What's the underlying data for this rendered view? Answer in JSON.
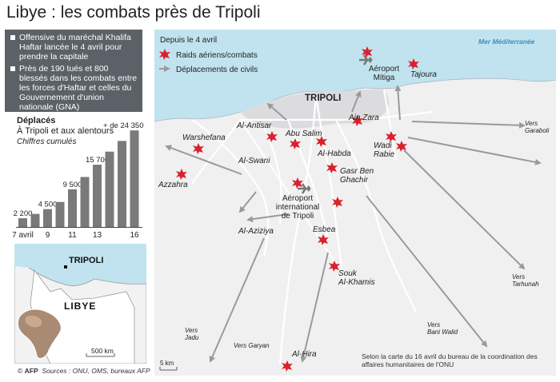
{
  "title": "Libye : les combats près de Tripoli",
  "info": [
    "Offensive du maréchal Khalifa Haftar lancée le 4 avril pour prendre la capitale",
    "Près de 190 tués et 800 blessés dans les combats entre les forces d'Haftar et celles du Gouvernement d'union nationale (GNA)"
  ],
  "chart_data": {
    "type": "bar",
    "title": "Déplacés",
    "subtitle": "À Tripoli et aux alentours",
    "subtitle2": "Chiffres cumulés",
    "categories": [
      "7 avril",
      "8",
      "9",
      "10",
      "11",
      "12",
      "13",
      "14",
      "15",
      "16"
    ],
    "tick_labels": [
      "7 avril",
      "",
      "9",
      "",
      "11",
      "",
      "13",
      "",
      "",
      "16"
    ],
    "values": [
      2200,
      3300,
      4500,
      6300,
      9500,
      12600,
      15700,
      19000,
      21700,
      24350
    ],
    "value_labels": [
      "2 200",
      "",
      "4 500",
      "",
      "9 500",
      "",
      "15 700",
      "",
      "",
      "+ de 24 350"
    ],
    "ylim": [
      0,
      26000
    ],
    "bar_color": "#7a7a7a"
  },
  "inset": {
    "city": "TRIPOLI",
    "country": "LIBYE",
    "scale": "500 km"
  },
  "legend": {
    "since": "Depuis le 4 avril",
    "raids": "Raids aériens/combats",
    "moves": "Déplacements de civils"
  },
  "sea_label": "Mer Méditerranée",
  "city_label": "TRIPOLI",
  "places": {
    "mitiga": "Aéroport\nMitiga",
    "tajoura": "Tajoura",
    "ain_zara": "Ain Zara",
    "al_antisar": "Al-Antisar",
    "abu_salim": "Abu Salim",
    "al_habda": "Al-Habda",
    "warshefana": "Warshefana",
    "al_swani": "Al-Swani",
    "azzahra": "Azzahra",
    "gasr": "Gasr Ben\nGhachir",
    "airport": "Aéroport\ninternational\nde Tripoli",
    "wadi": "Wadi\nRabie",
    "al_aziziya": "Al-Aziziya",
    "esbea": "Esbea",
    "souk": "Souk\nAl-Khamis",
    "al_hira": "Al-Hira"
  },
  "directions": {
    "garaboli": "Vers\nGaraboli",
    "tarhunah": "Vers\nTarhunah",
    "bani_walid": "Vers\nBani Walid",
    "jadu": "Vers\nJadu",
    "garyan": "Vers Garyan"
  },
  "map_scale": "5 km",
  "note": "Selon la carte du 16 avril du bureau de la coordination des affaires humanitaires de l'ONU",
  "footer": {
    "logo": "AFP",
    "sources": "Sources : ONU, OMS, bureaux AFP",
    "copyright": "©"
  },
  "colors": {
    "sea": "#c1e3ef",
    "land": "#f0f0f0",
    "urban": "#dedee0",
    "road": "#ffffff",
    "raid": "#d8222e",
    "arrow": "#9a9a9a",
    "sea_label": "#3c8fb8"
  }
}
